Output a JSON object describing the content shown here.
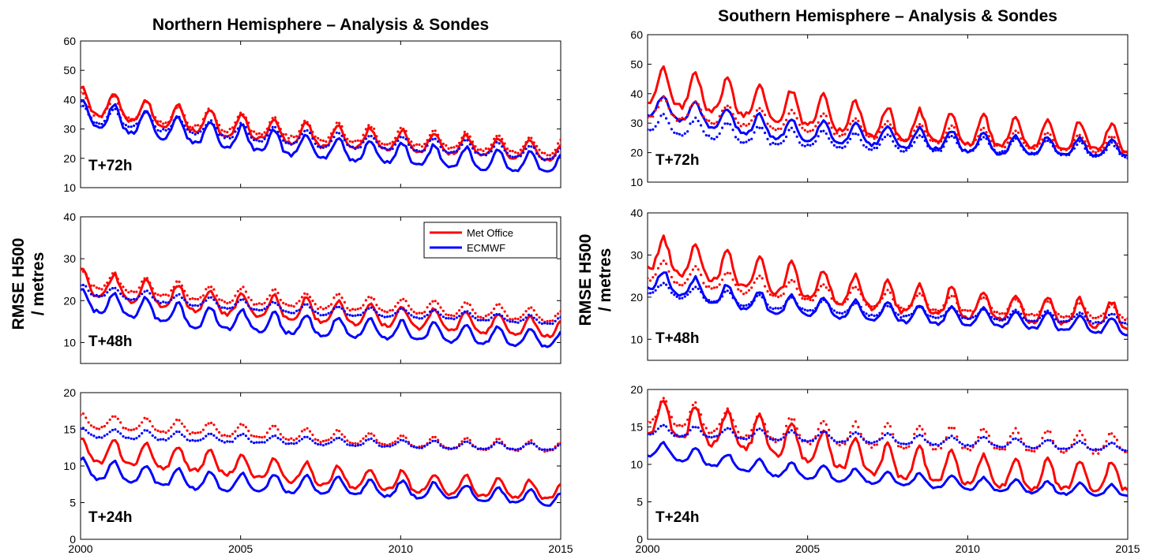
{
  "chart_data": [
    {
      "type": "line",
      "title": "Northern Hemisphere – Analysis & Sondes",
      "ylabel": "RMSE H500 / metres",
      "legend": {
        "placement": "top-right",
        "entries": [
          {
            "name": "Met Office",
            "color": "#ff0000"
          },
          {
            "name": "ECMWF",
            "color": "#0000ff"
          }
        ]
      },
      "xlim": [
        2000,
        2015
      ],
      "xticks": [
        2000,
        2005,
        2010,
        2015
      ],
      "panels": [
        {
          "label": "T+72h",
          "ylim": [
            10,
            60
          ],
          "yticks": [
            10,
            20,
            30,
            40,
            50,
            60
          ],
          "series": [
            {
              "name": "Met Office",
              "color": "#ff0000",
              "style": "solid",
              "trend": [
                39,
                32,
                27,
                24.5,
                21.5
              ],
              "amplitude": 4.2,
              "seasonal_peak": 0.05
            },
            {
              "name": "ECMWF",
              "color": "#0000ff",
              "style": "solid",
              "trend": [
                35,
                28,
                23,
                20,
                17.5
              ],
              "amplitude": 4.3,
              "seasonal_peak": 0.05
            },
            {
              "name": "Met Office",
              "color": "#ff0000",
              "style": "dotted",
              "trend": [
                38,
                33,
                28.5,
                26,
                23
              ],
              "amplitude": 3.5,
              "seasonal_peak": 0.05
            },
            {
              "name": "ECMWF",
              "color": "#0000ff",
              "style": "dotted",
              "trend": [
                35,
                30,
                26,
                24,
                21
              ],
              "amplitude": 2.8,
              "seasonal_peak": 0.05
            }
          ]
        },
        {
          "label": "T+48h",
          "ylim": [
            5,
            40
          ],
          "yticks": [
            10,
            20,
            30,
            40
          ],
          "series": [
            {
              "name": "Met Office",
              "color": "#ff0000",
              "style": "solid",
              "trend": [
                24,
                19.5,
                17,
                15,
                13
              ],
              "amplitude": 3.0,
              "seasonal_peak": 0.05
            },
            {
              "name": "ECMWF",
              "color": "#0000ff",
              "style": "solid",
              "trend": [
                20,
                15.5,
                13.5,
                12,
                10.5
              ],
              "amplitude": 2.6,
              "seasonal_peak": 0.05
            },
            {
              "name": "Met Office",
              "color": "#ff0000",
              "style": "dotted",
              "trend": [
                25,
                21.5,
                19.5,
                18,
                16
              ],
              "amplitude": 2.0,
              "seasonal_peak": 0.05
            },
            {
              "name": "ECMWF",
              "color": "#0000ff",
              "style": "dotted",
              "trend": [
                22.5,
                19.5,
                17.5,
                16.5,
                15
              ],
              "amplitude": 1.2,
              "seasonal_peak": 0.05
            }
          ]
        },
        {
          "label": "T+24h",
          "ylim": [
            0,
            20
          ],
          "yticks": [
            0,
            5,
            10,
            15,
            20
          ],
          "series": [
            {
              "name": "Met Office",
              "color": "#ff0000",
              "style": "solid",
              "trend": [
                12,
                10.5,
                8.5,
                7.3,
                6.3
              ],
              "amplitude": 1.6,
              "seasonal_peak": 0.05
            },
            {
              "name": "ECMWF",
              "color": "#0000ff",
              "style": "solid",
              "trend": [
                9.5,
                7.8,
                7.2,
                6.4,
                5.3
              ],
              "amplitude": 1.3,
              "seasonal_peak": 0.05
            },
            {
              "name": "Met Office",
              "color": "#ff0000",
              "style": "dotted",
              "trend": [
                16,
                15,
                14,
                13,
                12.5
              ],
              "amplitude": 0.9,
              "seasonal_peak": 0.05
            },
            {
              "name": "ECMWF",
              "color": "#0000ff",
              "style": "dotted",
              "trend": [
                14.5,
                13.8,
                13.3,
                12.8,
                12.5
              ],
              "amplitude": 0.6,
              "seasonal_peak": 0.05
            }
          ]
        }
      ]
    },
    {
      "type": "line",
      "title": "Southern Hemisphere – Analysis & Sondes",
      "ylabel": "RMSE H500 / metres",
      "xlim": [
        2000,
        2015
      ],
      "xticks": [
        2000,
        2005,
        2010,
        2015
      ],
      "panels": [
        {
          "label": "T+72h",
          "ylim": [
            10,
            60
          ],
          "yticks": [
            10,
            20,
            30,
            40,
            50,
            60
          ],
          "series": [
            {
              "name": "Met Office",
              "color": "#ff0000",
              "style": "solid",
              "trend": [
                42,
                36,
                29,
                26,
                24
              ],
              "amplitude": 6.0,
              "seasonal_peak": 0.5
            },
            {
              "name": "ECMWF",
              "color": "#0000ff",
              "style": "solid",
              "trend": [
                36,
                28,
                25,
                22,
                21
              ],
              "amplitude": 3.8,
              "seasonal_peak": 0.5
            },
            {
              "name": "Met Office",
              "color": "#ff0000",
              "style": "dotted",
              "trend": [
                35,
                31,
                27,
                24,
                22
              ],
              "amplitude": 3.5,
              "seasonal_peak": 0.5
            },
            {
              "name": "ECMWF",
              "color": "#0000ff",
              "style": "dotted",
              "trend": [
                30,
                25,
                23,
                22,
                20
              ],
              "amplitude": 3.0,
              "seasonal_peak": 0.5
            }
          ]
        },
        {
          "label": "T+48h",
          "ylim": [
            5,
            40
          ],
          "yticks": [
            10,
            20,
            30,
            40
          ],
          "series": [
            {
              "name": "Met Office",
              "color": "#ff0000",
              "style": "solid",
              "trend": [
                30,
                24.5,
                19.5,
                17,
                15
              ],
              "amplitude": 4.0,
              "seasonal_peak": 0.5
            },
            {
              "name": "ECMWF",
              "color": "#0000ff",
              "style": "solid",
              "trend": [
                24,
                18,
                16,
                14.5,
                12.5
              ],
              "amplitude": 2.5,
              "seasonal_peak": 0.5
            },
            {
              "name": "Met Office",
              "color": "#ff0000",
              "style": "dotted",
              "trend": [
                26,
                22,
                19,
                17.5,
                16
              ],
              "amplitude": 2.3,
              "seasonal_peak": 0.5
            },
            {
              "name": "ECMWF",
              "color": "#0000ff",
              "style": "dotted",
              "trend": [
                22,
                18.5,
                16.5,
                15.5,
                14.5
              ],
              "amplitude": 1.5,
              "seasonal_peak": 0.5
            }
          ]
        },
        {
          "label": "T+24h",
          "ylim": [
            0,
            20
          ],
          "yticks": [
            0,
            5,
            10,
            15,
            20
          ],
          "series": [
            {
              "name": "Met Office",
              "color": "#ff0000",
              "style": "solid",
              "trend": [
                16,
                13.5,
                10,
                8.5,
                8
              ],
              "amplitude": 2.5,
              "seasonal_peak": 0.5
            },
            {
              "name": "ECMWF",
              "color": "#0000ff",
              "style": "solid",
              "trend": [
                12,
                9.3,
                8,
                7,
                6.3
              ],
              "amplitude": 1.0,
              "seasonal_peak": 0.5
            },
            {
              "name": "Met Office",
              "color": "#ff0000",
              "style": "dotted",
              "trend": [
                17,
                14.5,
                13.5,
                13,
                12.5
              ],
              "amplitude": 1.7,
              "seasonal_peak": 0.5
            },
            {
              "name": "ECMWF",
              "color": "#0000ff",
              "style": "dotted",
              "trend": [
                14.5,
                13.8,
                13.3,
                12.8,
                12.2
              ],
              "amplitude": 0.7,
              "seasonal_peak": 0.5
            }
          ]
        }
      ]
    }
  ]
}
